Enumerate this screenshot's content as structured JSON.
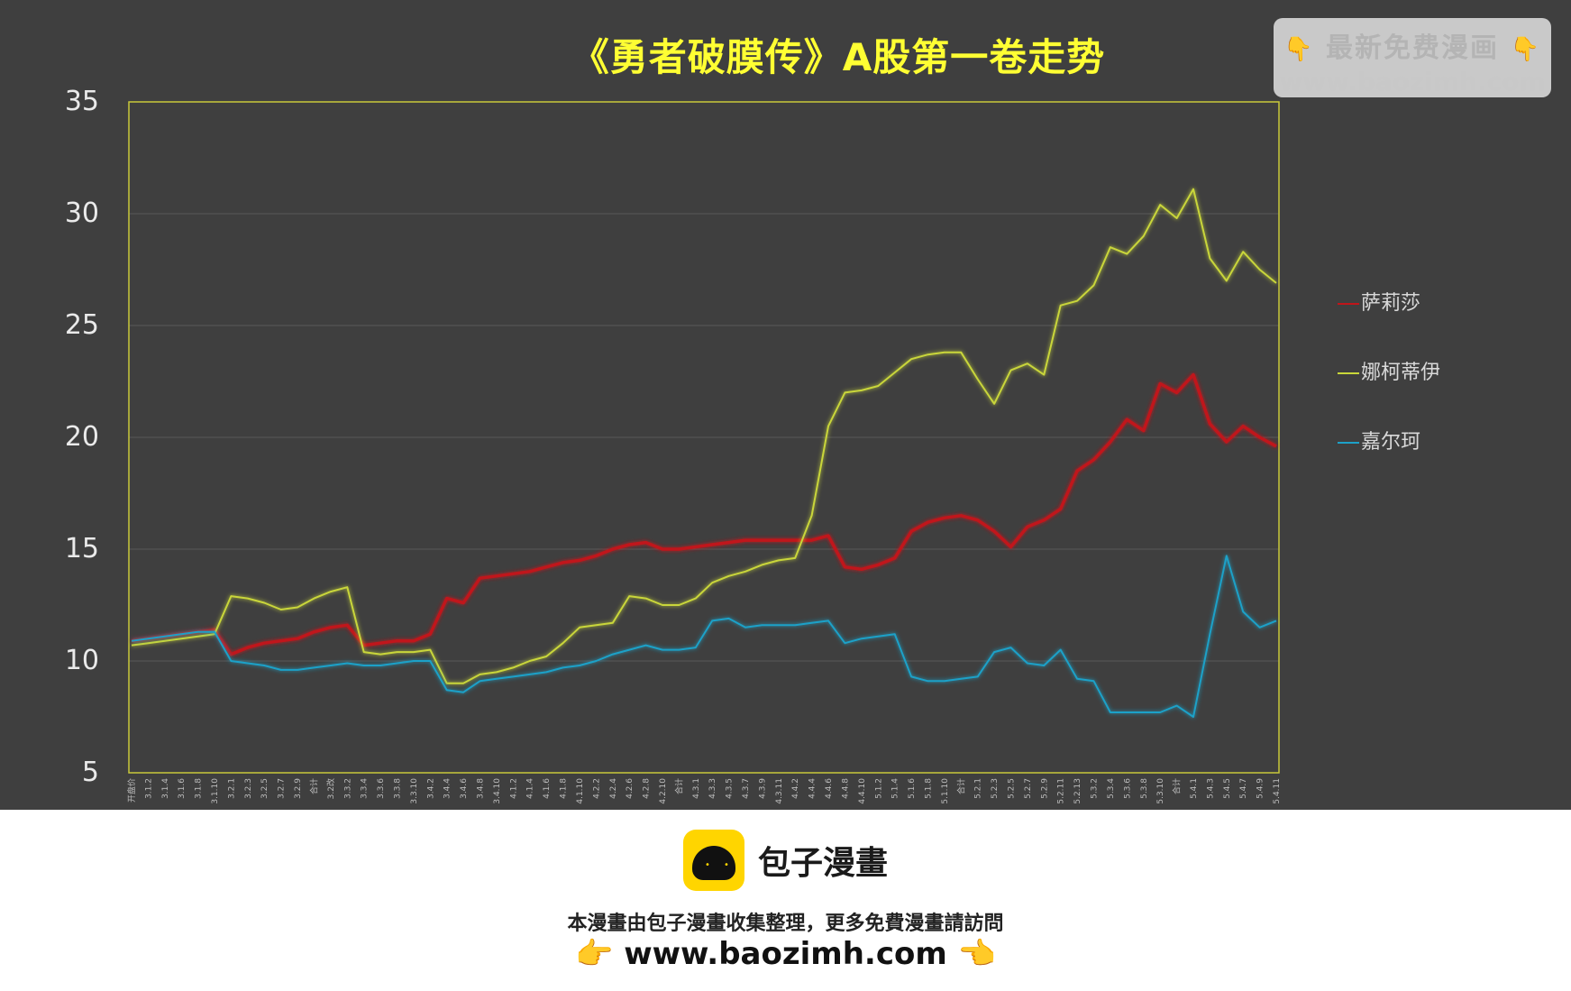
{
  "chart_data": {
    "type": "line",
    "title": "《勇者破膜传》A股第一卷走势",
    "xlabel": "",
    "ylabel": "",
    "ylim": [
      5,
      35
    ],
    "yticks": [
      5,
      10,
      15,
      20,
      25,
      30,
      35
    ],
    "grid": true,
    "legend_position": "right",
    "x": [
      "开盘价",
      "3.1.2",
      "3.1.4",
      "3.1.6",
      "3.1.8",
      "3.1.10",
      "3.2.1",
      "3.2.3",
      "3.2.5",
      "3.2.7",
      "3.2.9",
      "合计",
      "3.2改",
      "3.3.2",
      "3.3.4",
      "3.3.6",
      "3.3.8",
      "3.3.10",
      "3.4.2",
      "3.4.4",
      "3.4.6",
      "3.4.8",
      "3.4.10",
      "4.1.2",
      "4.1.4",
      "4.1.6",
      "4.1.8",
      "4.1.10",
      "4.2.2",
      "4.2.4",
      "4.2.6",
      "4.2.8",
      "4.2.10",
      "合计",
      "4.3.1",
      "4.3.3",
      "4.3.5",
      "4.3.7",
      "4.3.9",
      "4.3.11",
      "4.4.2",
      "4.4.4",
      "4.4.6",
      "4.4.8",
      "4.4.10",
      "5.1.2",
      "5.1.4",
      "5.1.6",
      "5.1.8",
      "5.1.10",
      "合计",
      "5.2.1",
      "5.2.3",
      "5.2.5",
      "5.2.7",
      "5.2.9",
      "5.2.11",
      "5.2.13",
      "5.3.2",
      "5.3.4",
      "5.3.6",
      "5.3.8",
      "5.3.10",
      "合计",
      "5.4.1",
      "5.4.3",
      "5.4.5",
      "5.4.7",
      "5.4.9",
      "5.4.11"
    ],
    "series": [
      {
        "name": "萨莉莎",
        "color": "#c0151a",
        "values": [
          10.9,
          11.0,
          11.1,
          11.2,
          11.3,
          11.4,
          10.3,
          10.6,
          10.8,
          10.9,
          11.0,
          11.3,
          11.5,
          11.6,
          10.7,
          10.8,
          10.9,
          10.9,
          11.2,
          12.8,
          12.6,
          13.7,
          13.8,
          13.9,
          14.0,
          14.2,
          14.4,
          14.5,
          14.7,
          15.0,
          15.2,
          15.3,
          15.0,
          15.0,
          15.1,
          15.2,
          15.3,
          15.4,
          15.4,
          15.4,
          15.4,
          15.4,
          15.6,
          14.2,
          14.1,
          14.3,
          14.6,
          15.8,
          16.2,
          16.4,
          16.5,
          16.3,
          15.8,
          15.1,
          16.0,
          16.3,
          16.8,
          18.5,
          19.0,
          19.8,
          20.8,
          20.3,
          22.4,
          22.0,
          22.8,
          20.6,
          19.8,
          20.5,
          20.0,
          19.6
        ]
      },
      {
        "name": "娜柯蒂伊",
        "color": "#c9d63a",
        "values": [
          10.7,
          10.8,
          10.9,
          11.0,
          11.1,
          11.2,
          12.9,
          12.8,
          12.6,
          12.3,
          12.4,
          12.8,
          13.1,
          13.3,
          10.4,
          10.3,
          10.4,
          10.4,
          10.5,
          9.0,
          9.0,
          9.4,
          9.5,
          9.7,
          10.0,
          10.2,
          10.8,
          11.5,
          11.6,
          11.7,
          12.9,
          12.8,
          12.5,
          12.5,
          12.8,
          13.5,
          13.8,
          14.0,
          14.3,
          14.5,
          14.6,
          16.5,
          20.5,
          22.0,
          22.1,
          22.3,
          22.9,
          23.5,
          23.7,
          23.8,
          23.8,
          22.6,
          21.5,
          23.0,
          23.3,
          22.8,
          25.9,
          26.1,
          26.8,
          28.5,
          28.2,
          29.0,
          30.4,
          29.8,
          31.1,
          28.0,
          27.0,
          28.3,
          27.5,
          26.9
        ]
      },
      {
        "name": "嘉尔珂",
        "color": "#1da1c8",
        "values": [
          10.9,
          11.0,
          11.1,
          11.2,
          11.3,
          11.3,
          10.0,
          9.9,
          9.8,
          9.6,
          9.6,
          9.7,
          9.8,
          9.9,
          9.8,
          9.8,
          9.9,
          10.0,
          10.0,
          8.7,
          8.6,
          9.1,
          9.2,
          9.3,
          9.4,
          9.5,
          9.7,
          9.8,
          10.0,
          10.3,
          10.5,
          10.7,
          10.5,
          10.5,
          10.6,
          11.8,
          11.9,
          11.5,
          11.6,
          11.6,
          11.6,
          11.7,
          11.8,
          10.8,
          11.0,
          11.1,
          11.2,
          9.3,
          9.1,
          9.1,
          9.2,
          9.3,
          10.4,
          10.6,
          9.9,
          9.8,
          10.5,
          9.2,
          9.1,
          7.7,
          7.7,
          7.7,
          7.7,
          8.0,
          7.5,
          11.2,
          14.7,
          12.2,
          11.5,
          11.8
        ]
      }
    ]
  },
  "watermark": {
    "top": "最新免费漫画",
    "bottom": "www.baozimh.com",
    "hand": "👇"
  },
  "footer": {
    "brand": "包子漫畫",
    "notice": "本漫畫由包子漫畫收集整理，更多免費漫畫請訪問",
    "url": "www.baozimh.com",
    "hand_left": "👉",
    "hand_right": "👈"
  }
}
